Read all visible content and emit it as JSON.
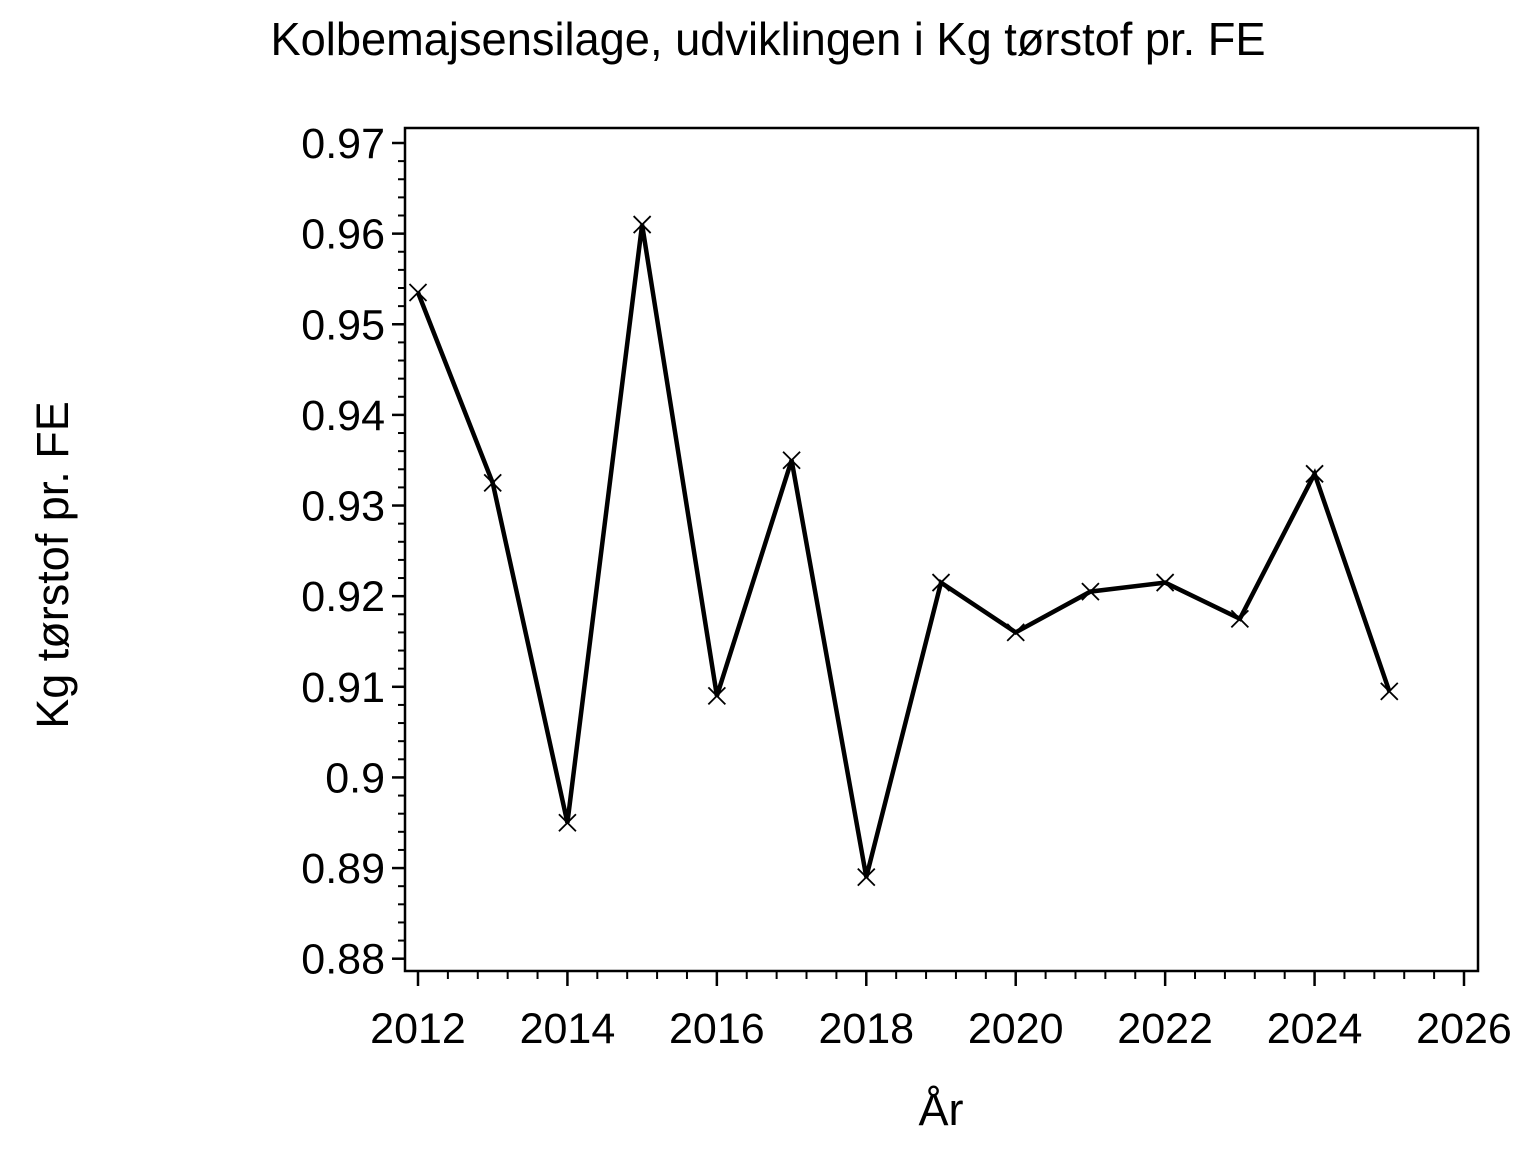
{
  "chart_data": {
    "type": "line",
    "title": "Kolbemajsensilage, udviklingen i Kg tørstof pr. FE",
    "xlabel": "År",
    "ylabel": "Kg tørstof pr. FE",
    "x": [
      2012,
      2013,
      2014,
      2015,
      2016,
      2017,
      2018,
      2019,
      2020,
      2021,
      2022,
      2023,
      2024,
      2025
    ],
    "series": [
      {
        "name": "Kg tørstof pr. FE",
        "values": [
          0.9535,
          0.9325,
          0.895,
          0.961,
          0.909,
          0.935,
          0.889,
          0.9215,
          0.916,
          0.9205,
          0.9215,
          0.9175,
          0.9335,
          0.9095
        ]
      }
    ],
    "marker": "x",
    "line_color": "#000000",
    "background_color": "#ffffff",
    "grid": false,
    "legend": "none",
    "x_ticks": {
      "values": [
        2012,
        2014,
        2016,
        2018,
        2020,
        2022,
        2024,
        2026
      ],
      "labels": [
        "2012",
        "2014",
        "2016",
        "2018",
        "2020",
        "2022",
        "2024",
        "2026"
      ],
      "minor_step": 0.4
    },
    "y_ticks": {
      "values": [
        0.97,
        0.96,
        0.95,
        0.94,
        0.93,
        0.92,
        0.91,
        0.9,
        0.89,
        0.88
      ],
      "labels": [
        "0.97",
        "0.96",
        "0.95",
        "0.94",
        "0.93",
        "0.92",
        "0.91",
        "0.9",
        "0.89",
        "0.88"
      ],
      "minor_step": 0.002
    },
    "xlim": [
      2011.83,
      2026.19
    ],
    "ylim": [
      0.8785,
      0.9717
    ]
  }
}
